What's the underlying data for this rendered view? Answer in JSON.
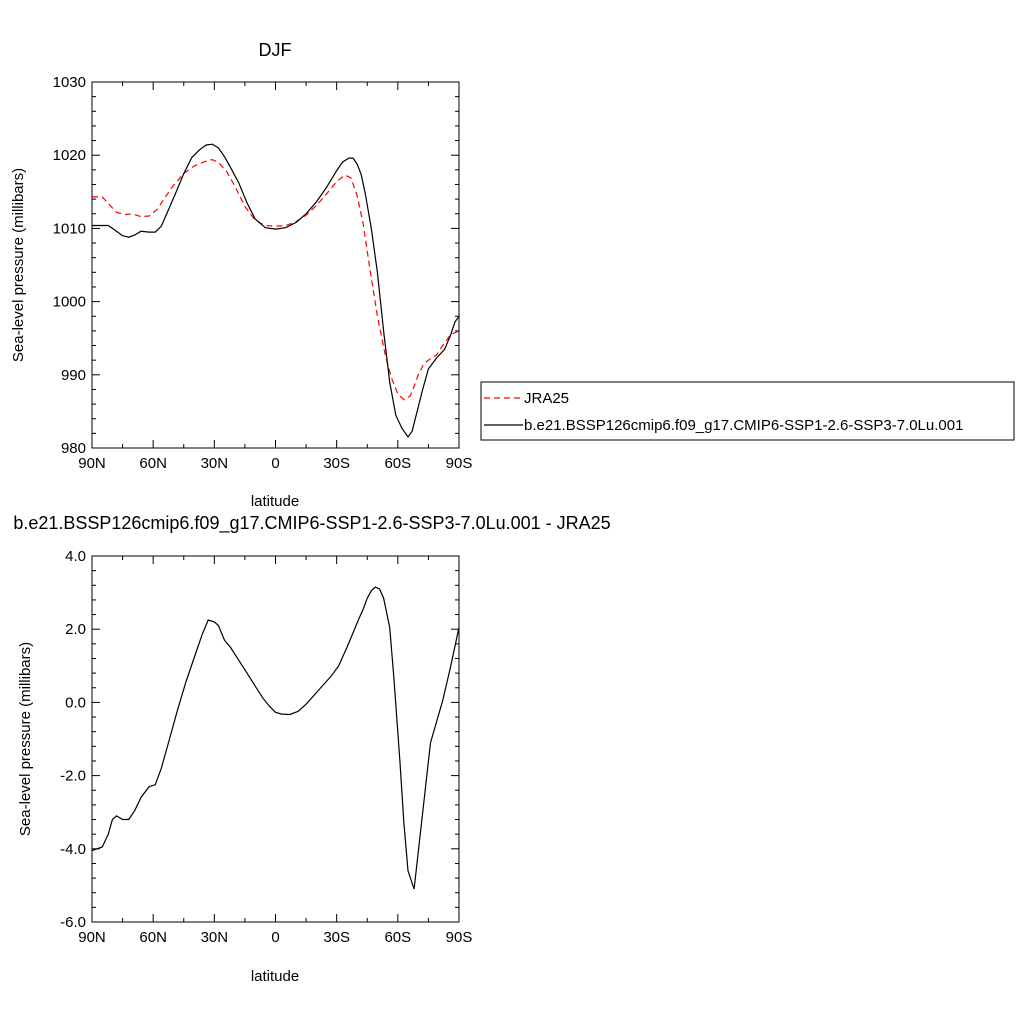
{
  "chart_data": [
    {
      "type": "line",
      "title": "DJF",
      "xlabel": "latitude",
      "ylabel": "Sea-level pressure (millibars)",
      "xlim": [
        90,
        -90
      ],
      "ylim": [
        980,
        1030
      ],
      "x_ticks": [
        90,
        60,
        30,
        0,
        -30,
        -60,
        -90
      ],
      "x_tick_labels": [
        "90N",
        "60N",
        "30N",
        "0",
        "30S",
        "60S",
        "90S"
      ],
      "y_ticks": [
        980,
        990,
        1000,
        1010,
        1020,
        1030
      ],
      "y_tick_labels": [
        "980",
        "990",
        "1000",
        "1010",
        "1020",
        "1030"
      ],
      "grid": false,
      "legend": "right",
      "series": [
        {
          "name": "JRA25",
          "color": "#ff0000",
          "dash": "dashed",
          "x": [
            90,
            85,
            82,
            78,
            74,
            70,
            66,
            62,
            58,
            54,
            50,
            45,
            40,
            35,
            31,
            28,
            24,
            20,
            15,
            10,
            5,
            0,
            -5,
            -10,
            -15,
            -20,
            -25,
            -30,
            -34,
            -37,
            -40,
            -43,
            -46,
            -50,
            -54,
            -57,
            -60,
            -63,
            -66,
            -68,
            -70,
            -73,
            -76,
            -79,
            -82,
            -86,
            -90
          ],
          "y": [
            1014.3,
            1014.3,
            1013.4,
            1012.2,
            1011.9,
            1012.0,
            1011.6,
            1011.7,
            1012.6,
            1014.3,
            1015.9,
            1017.5,
            1018.5,
            1019.1,
            1019.4,
            1019.0,
            1017.8,
            1015.8,
            1013.0,
            1011.1,
            1010.4,
            1010.3,
            1010.4,
            1010.9,
            1011.8,
            1013.1,
            1014.7,
            1016.4,
            1017.3,
            1016.9,
            1014.5,
            1010.6,
            1005.0,
            998.0,
            992.5,
            989.5,
            987.4,
            986.6,
            987.1,
            988.4,
            990.0,
            991.6,
            992.2,
            992.7,
            994.0,
            995.5,
            996.0
          ]
        },
        {
          "name": "b.e21.BSSP126cmip6.f09_g17.CMIP6-SSP1-2.6-SSP3-7.0Lu.001",
          "color": "#000000",
          "dash": "solid",
          "x": [
            90,
            85,
            82,
            78,
            75,
            72,
            69,
            66,
            62,
            59,
            56,
            53,
            49,
            45,
            41,
            37,
            34,
            31,
            28,
            25,
            22,
            18,
            14,
            10,
            5,
            0,
            -5,
            -10,
            -15,
            -20,
            -25,
            -30,
            -33,
            -36,
            -38,
            -40,
            -42,
            -44,
            -47,
            -50,
            -53,
            -56,
            -59,
            -62,
            -65,
            -67,
            -69,
            -72,
            -75,
            -79,
            -83,
            -86,
            -88,
            -90
          ],
          "y": [
            1010.4,
            1010.4,
            1010.4,
            1009.6,
            1009.0,
            1008.8,
            1009.1,
            1009.6,
            1009.5,
            1009.5,
            1010.3,
            1012.2,
            1014.8,
            1017.5,
            1019.7,
            1020.8,
            1021.4,
            1021.5,
            1021.0,
            1019.8,
            1018.3,
            1016.2,
            1013.5,
            1011.3,
            1010.1,
            1009.9,
            1010.1,
            1010.8,
            1012.0,
            1013.6,
            1015.6,
            1017.9,
            1019.1,
            1019.6,
            1019.6,
            1018.8,
            1017.4,
            1014.8,
            1010.0,
            1004.0,
            996.0,
            989.0,
            984.5,
            982.7,
            981.5,
            982.3,
            984.5,
            987.8,
            990.8,
            992.3,
            993.5,
            995.5,
            997.2,
            998.0
          ]
        }
      ]
    },
    {
      "type": "line",
      "title": "b.e21.BSSP126cmip6.f09_g17.CMIP6-SSP1-2.6-SSP3-7.0Lu.001 - JRA25",
      "xlabel": "latitude",
      "ylabel": "Sea-level pressure (millibars)",
      "xlim": [
        90,
        -90
      ],
      "ylim": [
        -6,
        4
      ],
      "x_ticks": [
        90,
        60,
        30,
        0,
        -30,
        -60,
        -90
      ],
      "x_tick_labels": [
        "90N",
        "60N",
        "30N",
        "0",
        "30S",
        "60S",
        "90S"
      ],
      "y_ticks": [
        -6,
        -4,
        -2,
        0,
        2,
        4
      ],
      "y_tick_labels": [
        "-6.0",
        "-4.0",
        "-2.0",
        "0.0",
        "2.0",
        "4.0"
      ],
      "grid": false,
      "series": [
        {
          "color": "#000000",
          "dash": "solid",
          "x": [
            90,
            85,
            82,
            80,
            78,
            75,
            72,
            69,
            66,
            62,
            59,
            56,
            52,
            48,
            44,
            40,
            36,
            33,
            30,
            28,
            25,
            22,
            18,
            14,
            10,
            6,
            3,
            0,
            -3,
            -7,
            -11,
            -15,
            -19,
            -23,
            -27,
            -31,
            -35,
            -38,
            -41,
            -43,
            -45,
            -47,
            -49,
            -51,
            -53,
            -56,
            -58,
            -61,
            -63,
            -65,
            -68,
            -72,
            -76,
            -82,
            -86,
            -90
          ],
          "y": [
            -4.05,
            -3.95,
            -3.6,
            -3.2,
            -3.1,
            -3.2,
            -3.2,
            -2.95,
            -2.6,
            -2.3,
            -2.25,
            -1.8,
            -1.0,
            -0.2,
            0.55,
            1.2,
            1.85,
            2.25,
            2.2,
            2.1,
            1.7,
            1.5,
            1.15,
            0.8,
            0.45,
            0.1,
            -0.1,
            -0.27,
            -0.32,
            -0.33,
            -0.25,
            -0.05,
            0.2,
            0.45,
            0.7,
            1.0,
            1.5,
            1.9,
            2.3,
            2.55,
            2.85,
            3.05,
            3.15,
            3.1,
            2.85,
            2.05,
            0.7,
            -1.6,
            -3.3,
            -4.6,
            -5.1,
            -3.1,
            -1.1,
            0.05,
            1.0,
            2.05
          ]
        }
      ]
    }
  ]
}
